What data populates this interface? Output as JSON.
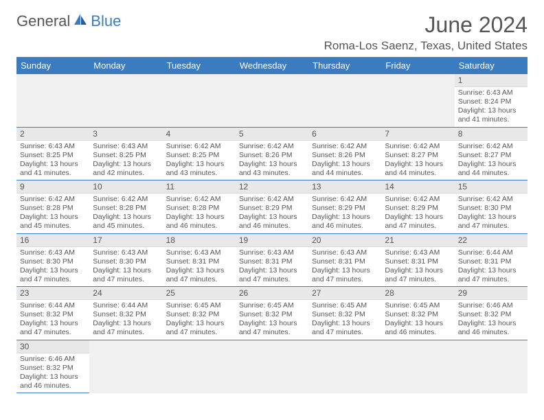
{
  "logo": {
    "general": "General",
    "blue": "Blue"
  },
  "title": "June 2024",
  "location": "Roma-Los Saenz, Texas, United States",
  "colors": {
    "header_bg": "#3b7bbf",
    "header_fg": "#ffffff",
    "daynum_bg": "#e8e8e8",
    "text": "#555555",
    "divider": "#3b7bbf"
  },
  "weekdays": [
    "Sunday",
    "Monday",
    "Tuesday",
    "Wednesday",
    "Thursday",
    "Friday",
    "Saturday"
  ],
  "firstDayIndex": 6,
  "daysInMonth": 30,
  "days": {
    "1": {
      "sunrise": "6:43 AM",
      "sunset": "8:24 PM",
      "daylight": "13 hours and 41 minutes."
    },
    "2": {
      "sunrise": "6:43 AM",
      "sunset": "8:25 PM",
      "daylight": "13 hours and 41 minutes."
    },
    "3": {
      "sunrise": "6:43 AM",
      "sunset": "8:25 PM",
      "daylight": "13 hours and 42 minutes."
    },
    "4": {
      "sunrise": "6:42 AM",
      "sunset": "8:25 PM",
      "daylight": "13 hours and 43 minutes."
    },
    "5": {
      "sunrise": "6:42 AM",
      "sunset": "8:26 PM",
      "daylight": "13 hours and 43 minutes."
    },
    "6": {
      "sunrise": "6:42 AM",
      "sunset": "8:26 PM",
      "daylight": "13 hours and 44 minutes."
    },
    "7": {
      "sunrise": "6:42 AM",
      "sunset": "8:27 PM",
      "daylight": "13 hours and 44 minutes."
    },
    "8": {
      "sunrise": "6:42 AM",
      "sunset": "8:27 PM",
      "daylight": "13 hours and 44 minutes."
    },
    "9": {
      "sunrise": "6:42 AM",
      "sunset": "8:28 PM",
      "daylight": "13 hours and 45 minutes."
    },
    "10": {
      "sunrise": "6:42 AM",
      "sunset": "8:28 PM",
      "daylight": "13 hours and 45 minutes."
    },
    "11": {
      "sunrise": "6:42 AM",
      "sunset": "8:28 PM",
      "daylight": "13 hours and 46 minutes."
    },
    "12": {
      "sunrise": "6:42 AM",
      "sunset": "8:29 PM",
      "daylight": "13 hours and 46 minutes."
    },
    "13": {
      "sunrise": "6:42 AM",
      "sunset": "8:29 PM",
      "daylight": "13 hours and 46 minutes."
    },
    "14": {
      "sunrise": "6:42 AM",
      "sunset": "8:29 PM",
      "daylight": "13 hours and 47 minutes."
    },
    "15": {
      "sunrise": "6:42 AM",
      "sunset": "8:30 PM",
      "daylight": "13 hours and 47 minutes."
    },
    "16": {
      "sunrise": "6:43 AM",
      "sunset": "8:30 PM",
      "daylight": "13 hours and 47 minutes."
    },
    "17": {
      "sunrise": "6:43 AM",
      "sunset": "8:30 PM",
      "daylight": "13 hours and 47 minutes."
    },
    "18": {
      "sunrise": "6:43 AM",
      "sunset": "8:31 PM",
      "daylight": "13 hours and 47 minutes."
    },
    "19": {
      "sunrise": "6:43 AM",
      "sunset": "8:31 PM",
      "daylight": "13 hours and 47 minutes."
    },
    "20": {
      "sunrise": "6:43 AM",
      "sunset": "8:31 PM",
      "daylight": "13 hours and 47 minutes."
    },
    "21": {
      "sunrise": "6:43 AM",
      "sunset": "8:31 PM",
      "daylight": "13 hours and 47 minutes."
    },
    "22": {
      "sunrise": "6:44 AM",
      "sunset": "8:31 PM",
      "daylight": "13 hours and 47 minutes."
    },
    "23": {
      "sunrise": "6:44 AM",
      "sunset": "8:32 PM",
      "daylight": "13 hours and 47 minutes."
    },
    "24": {
      "sunrise": "6:44 AM",
      "sunset": "8:32 PM",
      "daylight": "13 hours and 47 minutes."
    },
    "25": {
      "sunrise": "6:45 AM",
      "sunset": "8:32 PM",
      "daylight": "13 hours and 47 minutes."
    },
    "26": {
      "sunrise": "6:45 AM",
      "sunset": "8:32 PM",
      "daylight": "13 hours and 47 minutes."
    },
    "27": {
      "sunrise": "6:45 AM",
      "sunset": "8:32 PM",
      "daylight": "13 hours and 47 minutes."
    },
    "28": {
      "sunrise": "6:45 AM",
      "sunset": "8:32 PM",
      "daylight": "13 hours and 46 minutes."
    },
    "29": {
      "sunrise": "6:46 AM",
      "sunset": "8:32 PM",
      "daylight": "13 hours and 46 minutes."
    },
    "30": {
      "sunrise": "6:46 AM",
      "sunset": "8:32 PM",
      "daylight": "13 hours and 46 minutes."
    }
  },
  "labels": {
    "sunrise_prefix": "Sunrise: ",
    "sunset_prefix": "Sunset: ",
    "daylight_prefix": "Daylight: "
  }
}
